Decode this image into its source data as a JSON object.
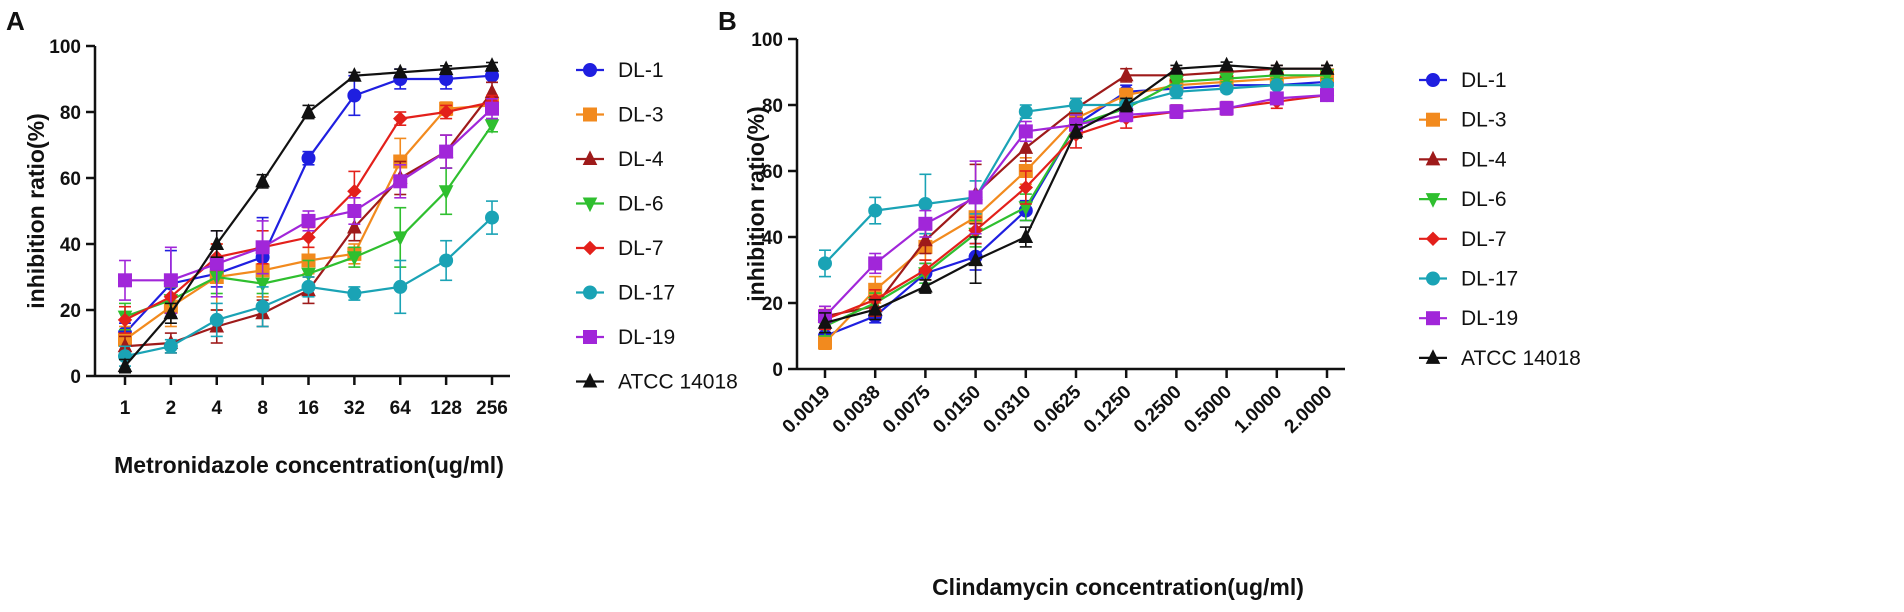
{
  "chart_data": [
    {
      "panel": "A",
      "type": "line",
      "xlabel": "Metronidazole concentration(ug/ml)",
      "ylabel": "inhibition ratio(%)",
      "categories": [
        "1",
        "2",
        "4",
        "8",
        "16",
        "32",
        "64",
        "128",
        "256"
      ],
      "ylim": [
        0,
        100
      ],
      "yticks": [
        0,
        20,
        40,
        60,
        80,
        100
      ],
      "yticklabels": [
        "0",
        "20",
        "40",
        "60",
        "80",
        "100"
      ],
      "legend_position": "right",
      "series": [
        {
          "name": "DL-1",
          "color": "#1f1fe0",
          "marker": "circle",
          "values": [
            13,
            28,
            31,
            36,
            66,
            85,
            90,
            90,
            91
          ],
          "errors": [
            3,
            10,
            4,
            12,
            2,
            6,
            3,
            3,
            2
          ]
        },
        {
          "name": "DL-3",
          "color": "#f28a1e",
          "marker": "square",
          "values": [
            11,
            21,
            30,
            32,
            35,
            37,
            65,
            81,
            82
          ],
          "errors": [
            4,
            6,
            10,
            8,
            4,
            3,
            7,
            2,
            2
          ]
        },
        {
          "name": "DL-4",
          "color": "#9e1a1a",
          "marker": "triangle",
          "values": [
            9,
            10,
            15,
            19,
            26,
            45,
            60,
            68,
            86
          ],
          "errors": [
            3,
            3,
            5,
            4,
            4,
            4,
            5,
            5,
            3
          ]
        },
        {
          "name": "DL-6",
          "color": "#2fbf2f",
          "marker": "triangle-down",
          "values": [
            18,
            23,
            30,
            28,
            31,
            36,
            42,
            56,
            76
          ],
          "errors": [
            4,
            4,
            5,
            3,
            4,
            3,
            9,
            7,
            2
          ]
        },
        {
          "name": "DL-7",
          "color": "#e3201b",
          "marker": "diamond",
          "values": [
            17,
            24,
            36,
            39,
            42,
            56,
            78,
            80,
            83
          ],
          "errors": [
            4,
            5,
            4,
            5,
            3,
            6,
            2,
            2,
            2
          ]
        },
        {
          "name": "DL-17",
          "color": "#1aa3b5",
          "marker": "circle",
          "values": [
            6,
            9,
            17,
            21,
            27,
            25,
            27,
            35,
            48
          ],
          "errors": [
            3,
            2,
            5,
            6,
            3,
            2,
            8,
            6,
            5
          ]
        },
        {
          "name": "DL-19",
          "color": "#a126d9",
          "marker": "square",
          "values": [
            29,
            29,
            34,
            39,
            47,
            50,
            59,
            68,
            81
          ],
          "errors": [
            6,
            10,
            10,
            8,
            3,
            4,
            5,
            5,
            3
          ]
        },
        {
          "name": "ATCC 14018",
          "color": "#111111",
          "marker": "triangle",
          "values": [
            3,
            19,
            40,
            59,
            80,
            91,
            92,
            93,
            94
          ],
          "errors": [
            2,
            3,
            4,
            2,
            2,
            1,
            1,
            1,
            1
          ]
        }
      ]
    },
    {
      "panel": "B",
      "type": "line",
      "xlabel": "Clindamycin concentration(ug/ml)",
      "ylabel": "inhibition ratio(%)",
      "categories": [
        "0.0019",
        "0.0038",
        "0.0075",
        "0.0150",
        "0.0310",
        "0.0625",
        "0.1250",
        "0.2500",
        "0.5000",
        "1.0000",
        "2.0000"
      ],
      "ylim": [
        0,
        100
      ],
      "yticks": [
        0,
        20,
        40,
        60,
        80,
        100
      ],
      "yticklabels": [
        "0",
        "20",
        "40",
        "60",
        "80",
        "100"
      ],
      "legend_position": "right",
      "series": [
        {
          "name": "DL-1",
          "color": "#1f1fe0",
          "marker": "circle",
          "values": [
            10,
            16,
            29,
            34,
            48,
            74,
            84,
            85,
            86,
            86,
            87
          ],
          "errors": [
            2,
            2,
            3,
            4,
            3,
            3,
            2,
            2,
            2,
            1,
            1
          ]
        },
        {
          "name": "DL-3",
          "color": "#f28a1e",
          "marker": "square",
          "values": [
            8,
            24,
            37,
            46,
            60,
            76,
            83,
            86,
            87,
            88,
            89
          ],
          "errors": [
            2,
            4,
            4,
            5,
            4,
            3,
            2,
            2,
            2,
            1,
            1
          ]
        },
        {
          "name": "DL-4",
          "color": "#9e1a1a",
          "marker": "triangle",
          "values": [
            16,
            19,
            39,
            53,
            67,
            79,
            89,
            89,
            90,
            91,
            91
          ],
          "errors": [
            3,
            3,
            4,
            9,
            4,
            3,
            2,
            2,
            1,
            1,
            1
          ]
        },
        {
          "name": "DL-6",
          "color": "#2fbf2f",
          "marker": "triangle-down",
          "values": [
            13,
            20,
            29,
            41,
            49,
            74,
            79,
            87,
            88,
            89,
            89
          ],
          "errors": [
            3,
            3,
            3,
            4,
            4,
            3,
            2,
            2,
            1,
            1,
            1
          ]
        },
        {
          "name": "DL-7",
          "color": "#e3201b",
          "marker": "diamond",
          "values": [
            15,
            21,
            30,
            42,
            55,
            71,
            76,
            78,
            79,
            81,
            83
          ],
          "errors": [
            3,
            3,
            3,
            4,
            5,
            4,
            3,
            2,
            2,
            2,
            1
          ]
        },
        {
          "name": "DL-17",
          "color": "#1aa3b5",
          "marker": "circle",
          "values": [
            32,
            48,
            50,
            52,
            78,
            80,
            80,
            84,
            85,
            86,
            86
          ],
          "errors": [
            4,
            4,
            9,
            5,
            2,
            2,
            2,
            2,
            1,
            1,
            1
          ]
        },
        {
          "name": "DL-19",
          "color": "#a126d9",
          "marker": "square",
          "values": [
            16,
            32,
            44,
            52,
            72,
            74,
            77,
            78,
            79,
            82,
            83
          ],
          "errors": [
            3,
            3,
            4,
            11,
            3,
            3,
            2,
            2,
            2,
            1,
            1
          ]
        },
        {
          "name": "ATCC 14018",
          "color": "#111111",
          "marker": "triangle",
          "values": [
            14,
            18,
            25,
            33,
            40,
            72,
            80,
            91,
            92,
            91,
            91
          ],
          "errors": [
            3,
            3,
            2,
            7,
            3,
            2,
            2,
            1,
            1,
            1,
            1
          ]
        }
      ]
    }
  ]
}
